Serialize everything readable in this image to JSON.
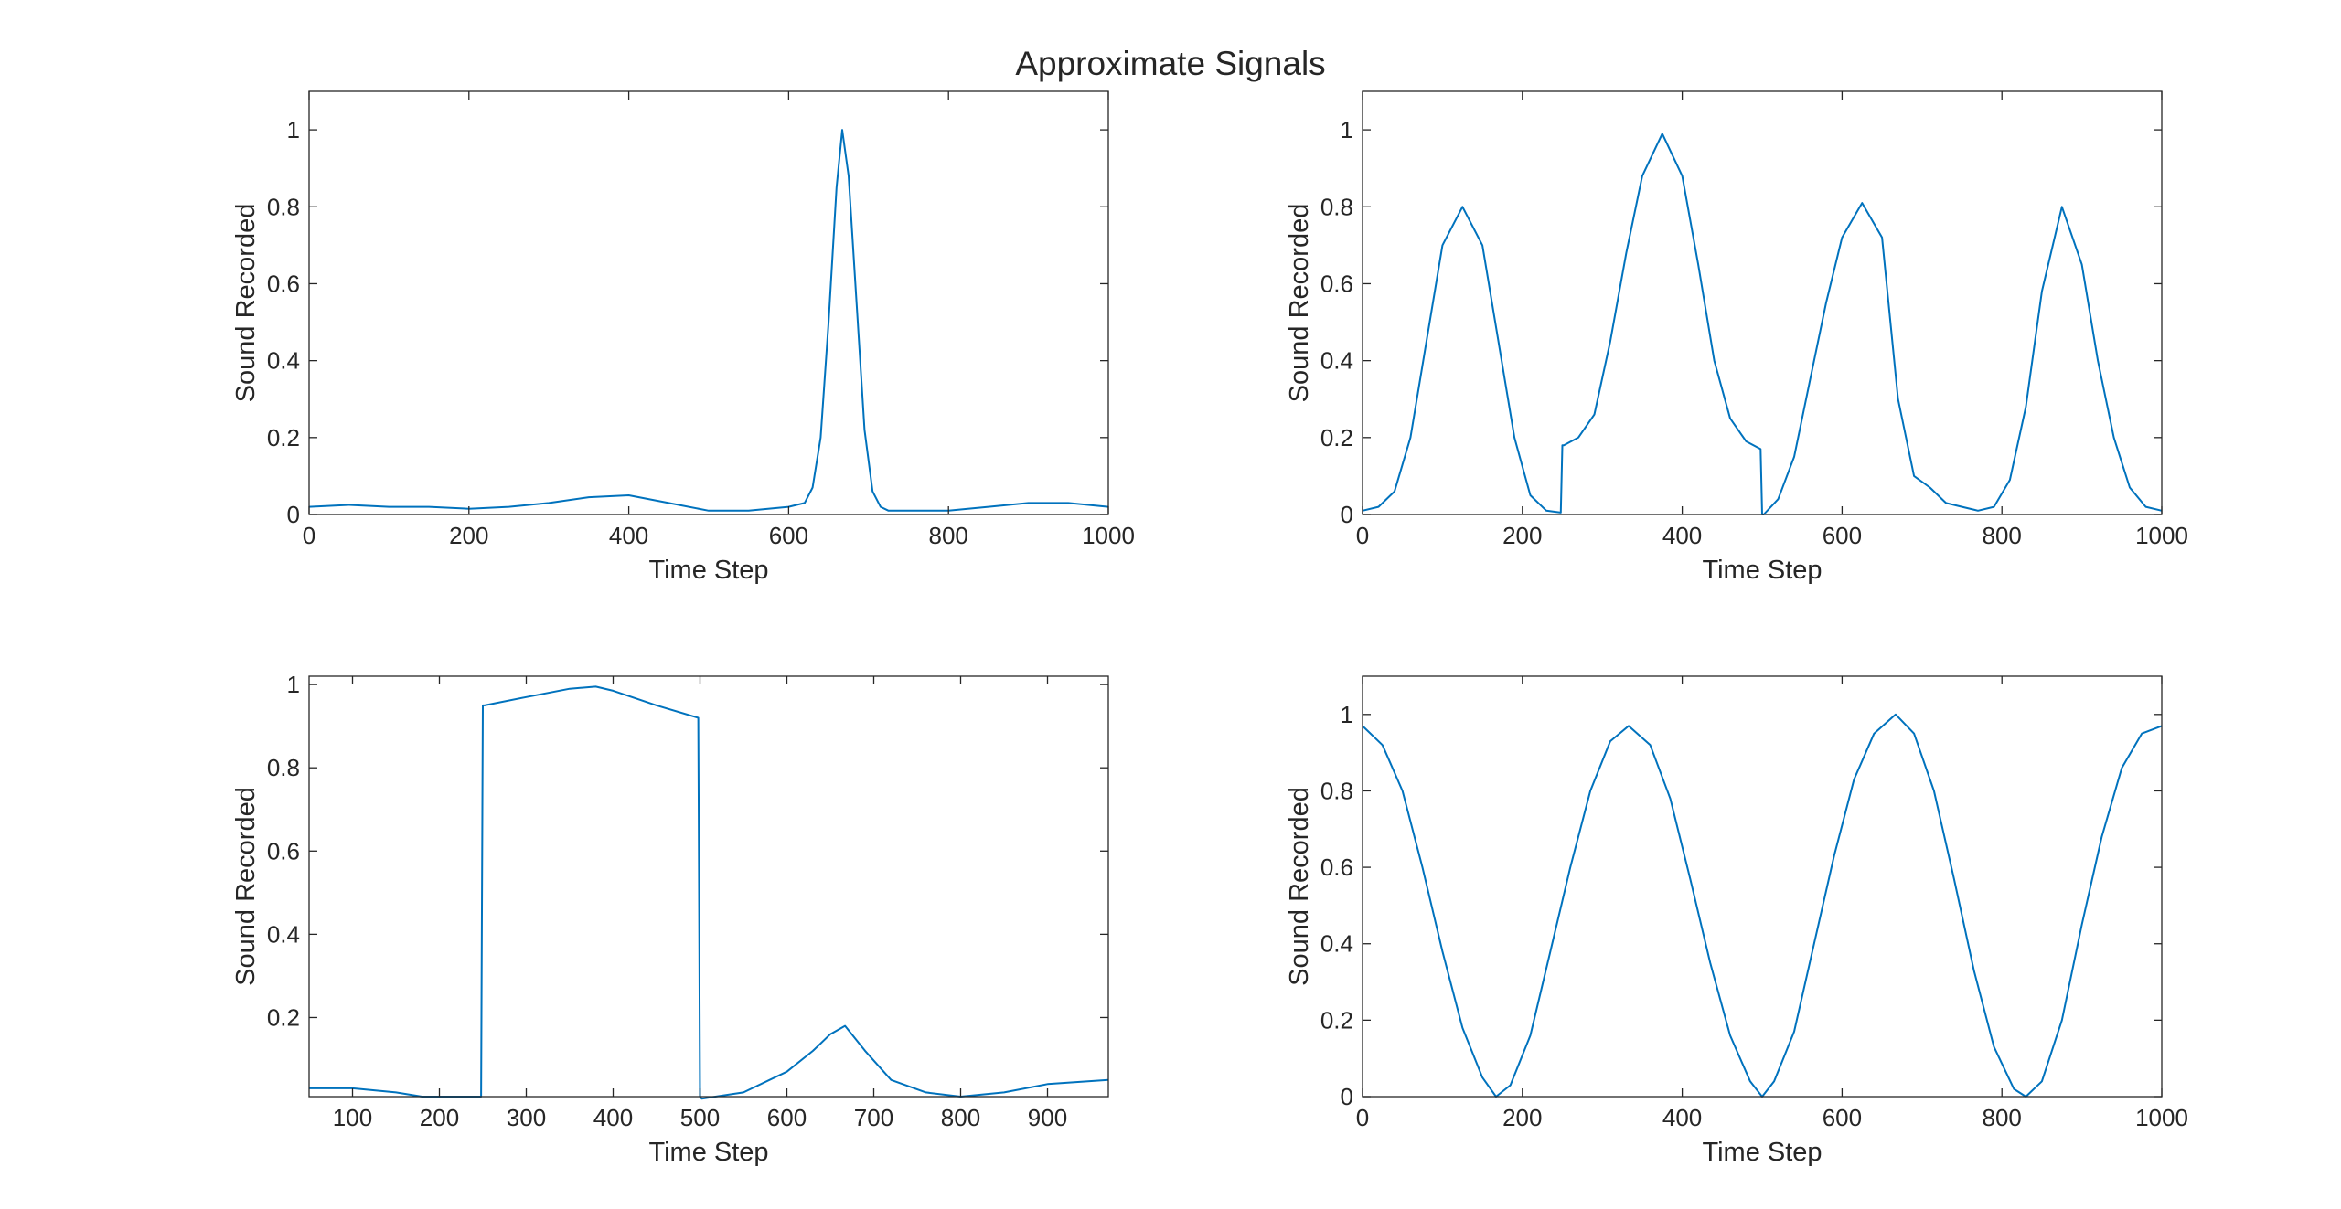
{
  "figure": {
    "title": "Approximate Signals",
    "line_color": "#0072BD",
    "axis_color": "#262626"
  },
  "chart_data": [
    {
      "type": "line",
      "xlabel": "Time Step",
      "ylabel": "Sound Recorded",
      "xlim": [
        0,
        1000
      ],
      "ylim": [
        0,
        1.1
      ],
      "xticks": [
        0,
        200,
        400,
        600,
        800,
        1000
      ],
      "yticks": [
        0,
        0.2,
        0.4,
        0.6,
        0.8,
        1
      ],
      "grid": false,
      "series": [
        {
          "x": [
            0,
            50,
            100,
            150,
            200,
            250,
            300,
            350,
            400,
            450,
            500,
            550,
            600,
            620,
            630,
            640,
            650,
            660,
            667,
            675,
            685,
            695,
            705,
            715,
            725,
            750,
            800,
            850,
            900,
            950,
            1000
          ],
          "y": [
            0.02,
            0.025,
            0.02,
            0.02,
            0.015,
            0.02,
            0.03,
            0.045,
            0.05,
            0.03,
            0.01,
            0.01,
            0.02,
            0.03,
            0.07,
            0.2,
            0.5,
            0.85,
            1.0,
            0.88,
            0.55,
            0.22,
            0.06,
            0.02,
            0.01,
            0.01,
            0.01,
            0.02,
            0.03,
            0.03,
            0.02
          ]
        }
      ]
    },
    {
      "type": "line",
      "xlabel": "Time Step",
      "ylabel": "Sound Recorded",
      "xlim": [
        0,
        1000
      ],
      "ylim": [
        0,
        1.1
      ],
      "xticks": [
        0,
        200,
        400,
        600,
        800,
        1000
      ],
      "yticks": [
        0,
        0.2,
        0.4,
        0.6,
        0.8,
        1
      ],
      "grid": false,
      "series": [
        {
          "x": [
            0,
            20,
            40,
            60,
            80,
            100,
            125,
            150,
            170,
            190,
            210,
            230,
            248,
            250,
            252,
            270,
            290,
            310,
            330,
            350,
            375,
            400,
            420,
            440,
            460,
            480,
            498,
            500,
            502,
            520,
            540,
            560,
            580,
            600,
            625,
            650,
            670,
            690,
            710,
            730,
            750,
            770,
            790,
            810,
            830,
            850,
            875,
            900,
            920,
            940,
            960,
            980,
            1000
          ],
          "y": [
            0.01,
            0.02,
            0.06,
            0.2,
            0.45,
            0.7,
            0.8,
            0.7,
            0.45,
            0.2,
            0.05,
            0.01,
            0.005,
            0.18,
            0.18,
            0.2,
            0.26,
            0.45,
            0.68,
            0.88,
            0.99,
            0.88,
            0.65,
            0.4,
            0.25,
            0.19,
            0.17,
            0.0,
            0.0,
            0.04,
            0.15,
            0.35,
            0.55,
            0.72,
            0.81,
            0.72,
            0.3,
            0.1,
            0.07,
            0.03,
            0.02,
            0.01,
            0.02,
            0.09,
            0.28,
            0.58,
            0.8,
            0.65,
            0.4,
            0.2,
            0.07,
            0.02,
            0.01
          ]
        }
      ]
    },
    {
      "type": "line",
      "xlabel": "Time Step",
      "ylabel": "Sound Recorded",
      "xlim": [
        50,
        970
      ],
      "ylim": [
        0.01,
        1.02
      ],
      "xticks": [
        100,
        200,
        300,
        400,
        500,
        600,
        700,
        800,
        900
      ],
      "yticks": [
        0.2,
        0.4,
        0.6,
        0.8,
        1
      ],
      "grid": false,
      "series": [
        {
          "x": [
            50,
            100,
            150,
            180,
            200,
            248,
            250,
            252,
            300,
            350,
            380,
            400,
            450,
            498,
            500,
            502,
            550,
            600,
            630,
            650,
            667,
            690,
            720,
            760,
            800,
            850,
            900,
            970
          ],
          "y": [
            0.03,
            0.03,
            0.02,
            0.01,
            0.01,
            0.01,
            0.95,
            0.95,
            0.97,
            0.99,
            0.995,
            0.985,
            0.95,
            0.92,
            0.01,
            0.005,
            0.02,
            0.07,
            0.12,
            0.16,
            0.18,
            0.12,
            0.05,
            0.02,
            0.01,
            0.02,
            0.04,
            0.05
          ]
        }
      ]
    },
    {
      "type": "line",
      "xlabel": "Time Step",
      "ylabel": "Sound Recorded",
      "xlim": [
        0,
        1000
      ],
      "ylim": [
        0,
        1.1
      ],
      "xticks": [
        0,
        200,
        400,
        600,
        800,
        1000
      ],
      "yticks": [
        0,
        0.2,
        0.4,
        0.6,
        0.8,
        1
      ],
      "grid": false,
      "series": [
        {
          "x": [
            0,
            25,
            50,
            75,
            100,
            125,
            150,
            167,
            185,
            210,
            235,
            260,
            285,
            310,
            333,
            360,
            385,
            410,
            435,
            460,
            485,
            500,
            515,
            540,
            565,
            590,
            615,
            640,
            667,
            690,
            715,
            740,
            765,
            790,
            815,
            830,
            850,
            875,
            900,
            925,
            950,
            975,
            1000
          ],
          "y": [
            0.97,
            0.92,
            0.8,
            0.6,
            0.38,
            0.18,
            0.05,
            0.0,
            0.03,
            0.16,
            0.38,
            0.6,
            0.8,
            0.93,
            0.97,
            0.92,
            0.78,
            0.57,
            0.35,
            0.16,
            0.04,
            0.0,
            0.04,
            0.17,
            0.4,
            0.63,
            0.83,
            0.95,
            1.0,
            0.95,
            0.8,
            0.57,
            0.33,
            0.13,
            0.02,
            0.0,
            0.04,
            0.2,
            0.45,
            0.68,
            0.86,
            0.95,
            0.97
          ]
        }
      ]
    }
  ]
}
